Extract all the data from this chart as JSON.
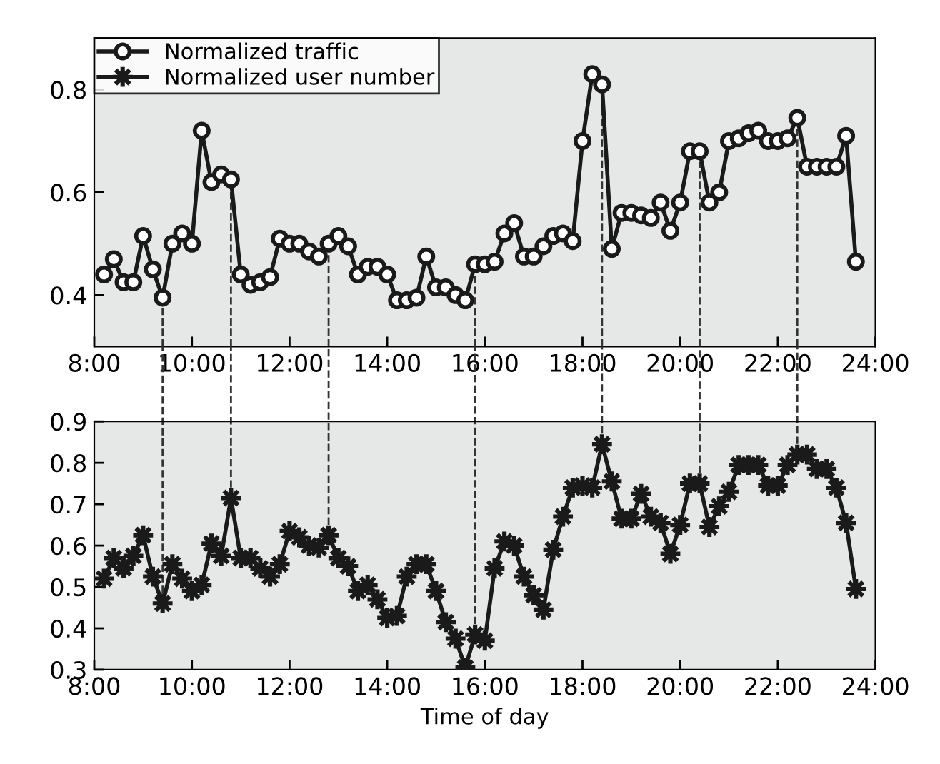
{
  "chart_data": [
    {
      "type": "line",
      "marker": "circle",
      "line_style": "solid",
      "legend": "top left",
      "grid": false,
      "tick_labels": "xy",
      "x": [
        8.2,
        8.4,
        8.6,
        8.8,
        9.0,
        9.2,
        9.4,
        9.6,
        9.8,
        10.0,
        10.2,
        10.4,
        10.6,
        10.8,
        11.0,
        11.2,
        11.4,
        11.6,
        11.8,
        12.0,
        12.2,
        12.4,
        12.6,
        12.8,
        13.0,
        13.2,
        13.4,
        13.6,
        13.8,
        14.0,
        14.2,
        14.4,
        14.6,
        14.8,
        15.0,
        15.2,
        15.4,
        15.6,
        15.8,
        16.0,
        16.2,
        16.4,
        16.6,
        16.8,
        17.0,
        17.2,
        17.4,
        17.6,
        17.8,
        18.0,
        18.2,
        18.4,
        18.6,
        18.8,
        19.0,
        19.2,
        19.4,
        19.6,
        19.8,
        20.0,
        20.2,
        20.4,
        20.6,
        20.8,
        21.0,
        21.2,
        21.4,
        21.6,
        21.8,
        22.0,
        22.2,
        22.4,
        22.6,
        22.8,
        23.0,
        23.2,
        23.4,
        23.6
      ],
      "series": [
        {
          "name": "Normalized traffic",
          "color": "#1a1a1a",
          "values": [
            0.44,
            0.47,
            0.425,
            0.425,
            0.515,
            0.45,
            0.395,
            0.5,
            0.52,
            0.5,
            0.72,
            0.62,
            0.635,
            0.625,
            0.44,
            0.42,
            0.425,
            0.435,
            0.51,
            0.5,
            0.5,
            0.485,
            0.475,
            0.5,
            0.515,
            0.495,
            0.44,
            0.455,
            0.455,
            0.44,
            0.39,
            0.39,
            0.395,
            0.475,
            0.415,
            0.415,
            0.4,
            0.39,
            0.46,
            0.46,
            0.465,
            0.52,
            0.54,
            0.475,
            0.475,
            0.495,
            0.515,
            0.52,
            0.505,
            0.7,
            0.83,
            0.81,
            0.49,
            0.56,
            0.56,
            0.555,
            0.55,
            0.58,
            0.525,
            0.58,
            0.68,
            0.68,
            0.58,
            0.6,
            0.7,
            0.705,
            0.715,
            0.72,
            0.7,
            0.7,
            0.705,
            0.745,
            0.65,
            0.65,
            0.65,
            0.65,
            0.71,
            0.465
          ]
        }
      ],
      "ylim": [
        0.3,
        0.9
      ],
      "yticks": [
        0.4,
        0.6,
        0.8
      ],
      "xlim": [
        8,
        24
      ],
      "xticks": [
        {
          "value": 8,
          "label": "8:00"
        },
        {
          "value": 10,
          "label": "10:00"
        },
        {
          "value": 12,
          "label": "12:00"
        },
        {
          "value": 14,
          "label": "14:00"
        },
        {
          "value": 16,
          "label": "16:00"
        },
        {
          "value": 18,
          "label": "18:00"
        },
        {
          "value": 20,
          "label": "20:00"
        },
        {
          "value": 22,
          "label": "22:00"
        },
        {
          "value": 24,
          "label": "24:00"
        }
      ],
      "ref_lines": [
        {
          "axis": "x",
          "value": 9.4,
          "color": "#333333",
          "line_style": "dashed"
        },
        {
          "axis": "x",
          "value": 10.8,
          "color": "#333333",
          "line_style": "dashed"
        },
        {
          "axis": "x",
          "value": 12.8,
          "color": "#333333",
          "line_style": "dashed"
        },
        {
          "axis": "x",
          "value": 15.8,
          "color": "#333333",
          "line_style": "dashed"
        },
        {
          "axis": "x",
          "value": 18.4,
          "color": "#333333",
          "line_style": "dashed"
        },
        {
          "axis": "x",
          "value": 20.4,
          "color": "#333333",
          "line_style": "dashed"
        },
        {
          "axis": "x",
          "value": 22.4,
          "color": "#333333",
          "line_style": "dashed"
        }
      ]
    },
    {
      "type": "line",
      "marker": "star",
      "line_style": "solid",
      "grid": false,
      "xlabel": "Time of day",
      "x": [
        8.2,
        8.4,
        8.6,
        8.8,
        9.0,
        9.2,
        9.4,
        9.6,
        9.8,
        10.0,
        10.2,
        10.4,
        10.6,
        10.8,
        11.0,
        11.2,
        11.4,
        11.6,
        11.8,
        12.0,
        12.2,
        12.4,
        12.6,
        12.8,
        13.0,
        13.2,
        13.4,
        13.6,
        13.8,
        14.0,
        14.2,
        14.4,
        14.6,
        14.8,
        15.0,
        15.2,
        15.4,
        15.6,
        15.8,
        16.0,
        16.2,
        16.4,
        16.6,
        16.8,
        17.0,
        17.2,
        17.4,
        17.6,
        17.8,
        18.0,
        18.2,
        18.4,
        18.6,
        18.8,
        19.0,
        19.2,
        19.4,
        19.6,
        19.8,
        20.0,
        20.2,
        20.4,
        20.6,
        20.8,
        21.0,
        21.2,
        21.4,
        21.6,
        21.8,
        22.0,
        22.2,
        22.4,
        22.6,
        22.8,
        23.0,
        23.2,
        23.4,
        23.6
      ],
      "series": [
        {
          "name": "Normalized user number",
          "color": "#1a1a1a",
          "values": [
            0.52,
            0.57,
            0.545,
            0.575,
            0.625,
            0.525,
            0.46,
            0.555,
            0.52,
            0.49,
            0.505,
            0.605,
            0.575,
            0.715,
            0.57,
            0.57,
            0.545,
            0.525,
            0.555,
            0.635,
            0.62,
            0.6,
            0.595,
            0.625,
            0.57,
            0.55,
            0.49,
            0.505,
            0.47,
            0.425,
            0.43,
            0.525,
            0.555,
            0.555,
            0.49,
            0.415,
            0.375,
            0.305,
            0.385,
            0.37,
            0.545,
            0.61,
            0.6,
            0.525,
            0.48,
            0.445,
            0.59,
            0.67,
            0.74,
            0.745,
            0.74,
            0.845,
            0.755,
            0.665,
            0.665,
            0.725,
            0.67,
            0.655,
            0.58,
            0.65,
            0.75,
            0.75,
            0.645,
            0.695,
            0.73,
            0.795,
            0.795,
            0.795,
            0.745,
            0.745,
            0.795,
            0.82,
            0.82,
            0.785,
            0.785,
            0.74,
            0.655,
            0.495
          ]
        }
      ],
      "ylim": [
        0.3,
        0.9
      ],
      "yticks": [
        0.3,
        0.4,
        0.5,
        0.6,
        0.7,
        0.8,
        0.9
      ],
      "xlim": [
        8,
        24
      ],
      "xticks": [
        {
          "value": 8,
          "label": "8:00"
        },
        {
          "value": 10,
          "label": "10:00"
        },
        {
          "value": 12,
          "label": "12:00"
        },
        {
          "value": 14,
          "label": "14:00"
        },
        {
          "value": 16,
          "label": "16:00"
        },
        {
          "value": 18,
          "label": "18:00"
        },
        {
          "value": 20,
          "label": "20:00"
        },
        {
          "value": 22,
          "label": "22:00"
        },
        {
          "value": 24,
          "label": "24:00"
        }
      ],
      "ref_lines": [
        {
          "axis": "x",
          "value": 9.4,
          "color": "#333333",
          "line_style": "dashed"
        },
        {
          "axis": "x",
          "value": 10.8,
          "color": "#333333",
          "line_style": "dashed"
        },
        {
          "axis": "x",
          "value": 12.8,
          "color": "#333333",
          "line_style": "dashed"
        },
        {
          "axis": "x",
          "value": 15.8,
          "color": "#333333",
          "line_style": "dashed"
        },
        {
          "axis": "x",
          "value": 18.4,
          "color": "#333333",
          "line_style": "dashed"
        },
        {
          "axis": "x",
          "value": 20.4,
          "color": "#333333",
          "line_style": "dashed"
        },
        {
          "axis": "x",
          "value": 22.4,
          "color": "#333333",
          "line_style": "dashed"
        }
      ]
    }
  ]
}
